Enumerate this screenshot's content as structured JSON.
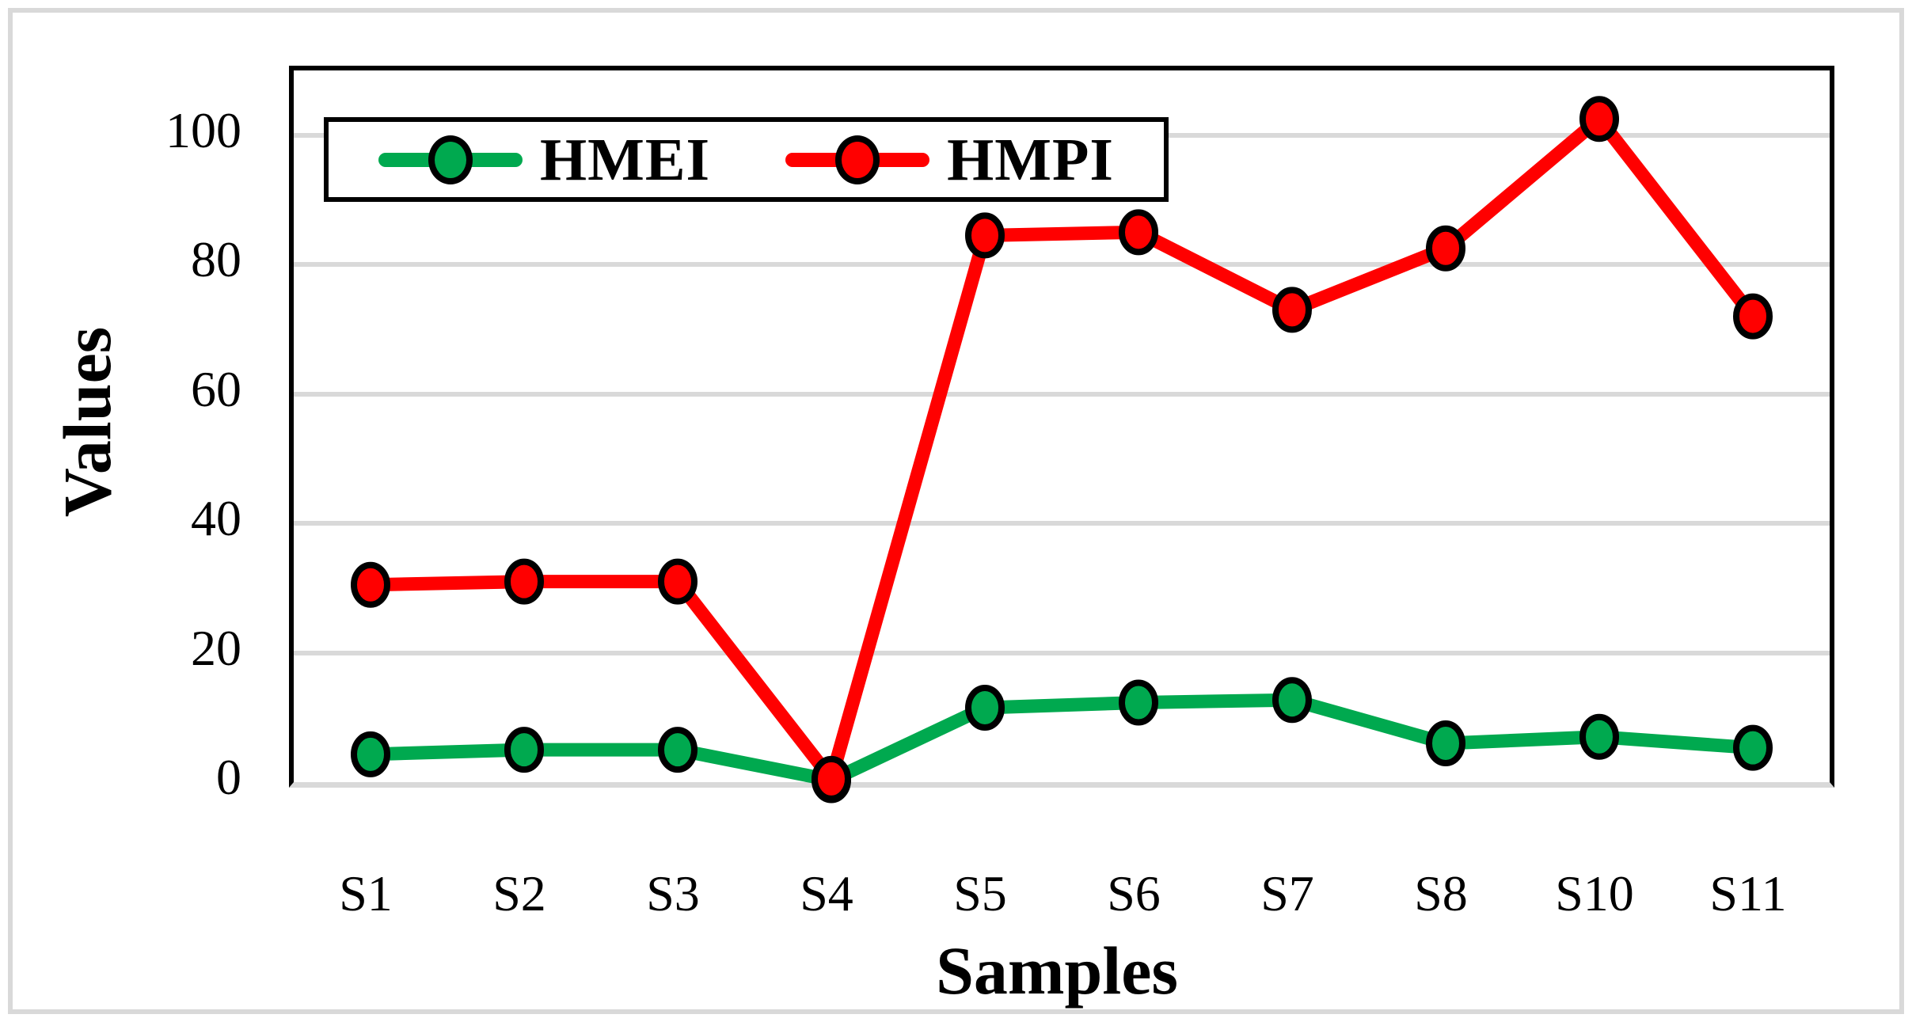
{
  "figure": {
    "background": "#ffffff",
    "frame_color": "#d9d9d9"
  },
  "chart_data": {
    "type": "line",
    "title": "",
    "categories": [
      "S1",
      "S2",
      "S3",
      "S4",
      "S5",
      "S6",
      "S7",
      "S8",
      "S10",
      "S11"
    ],
    "series": [
      {
        "name": "HMEI",
        "color": "#00A94F",
        "values": [
          4.3,
          5,
          5,
          0.3,
          11.5,
          12.3,
          12.7,
          6,
          7,
          5.3
        ]
      },
      {
        "name": "HMPI",
        "color": "#FF0000",
        "values": [
          30.5,
          31,
          31,
          0.5,
          84.5,
          85,
          73,
          82.5,
          102.5,
          72
        ]
      }
    ],
    "xlabel": "Samples",
    "ylabel": "Values",
    "ylim": [
      0,
      110
    ],
    "yticks": [
      0,
      20,
      40,
      60,
      80,
      100
    ],
    "grid": true,
    "gridline_color": "#d9d9d9",
    "axis_color": "#000000",
    "legend_position": "top-left",
    "marker": "circle"
  }
}
